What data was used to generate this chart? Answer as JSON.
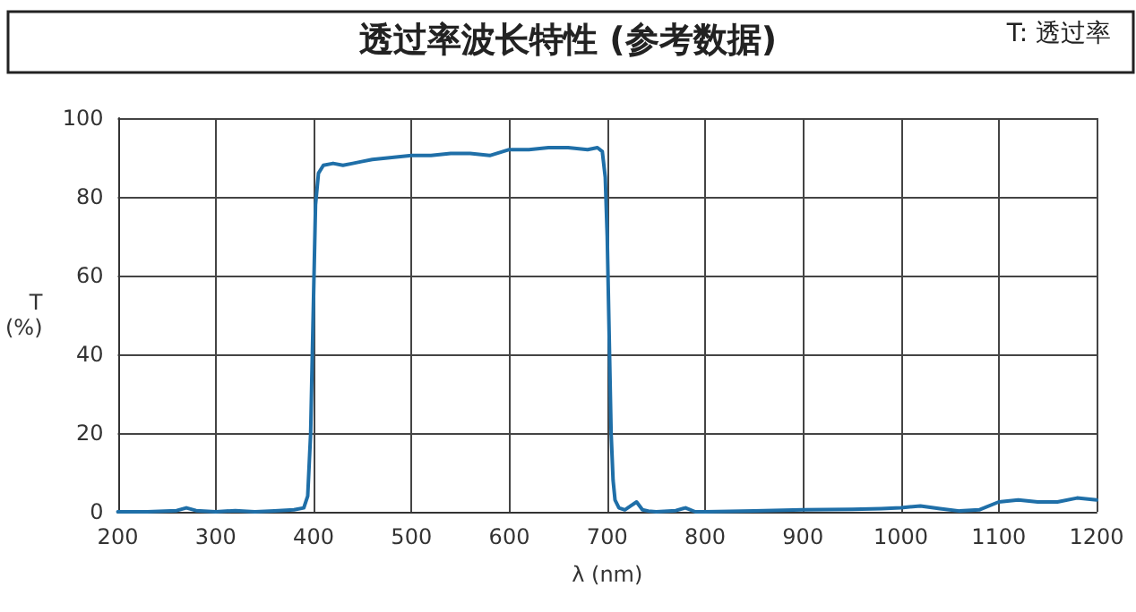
{
  "chart_data": {
    "type": "line",
    "title": "透过率波长特性 (参考数据)",
    "annotations": [
      "T: 透过率"
    ],
    "xlabel": "λ (nm)",
    "ylabel": "T\n(%)",
    "x": [
      200,
      230,
      260,
      270,
      280,
      300,
      320,
      340,
      360,
      380,
      390,
      394,
      397,
      400,
      402,
      405,
      410,
      420,
      430,
      440,
      450,
      460,
      480,
      500,
      520,
      540,
      560,
      580,
      600,
      620,
      640,
      660,
      680,
      690,
      695,
      698,
      700,
      702,
      704,
      706,
      708,
      712,
      718,
      724,
      730,
      736,
      742,
      750,
      770,
      780,
      790,
      800,
      850,
      900,
      950,
      980,
      1000,
      1020,
      1040,
      1060,
      1080,
      1100,
      1120,
      1140,
      1160,
      1180,
      1200
    ],
    "series": [
      {
        "color": "#1f6fa8",
        "values": [
          0,
          0,
          0.3,
          1,
          0.3,
          0,
          0.3,
          0,
          0.2,
          0.5,
          1,
          4,
          20,
          55,
          78,
          86,
          88,
          88.5,
          88,
          88.5,
          89,
          89.5,
          90,
          90.5,
          90.5,
          91,
          91,
          90.5,
          92,
          92,
          92.5,
          92.5,
          92,
          92.5,
          91.5,
          85,
          70,
          45,
          20,
          8,
          3,
          1,
          0.5,
          1.5,
          2.5,
          0.5,
          0.2,
          0,
          0.3,
          1,
          0,
          0,
          0.2,
          0.5,
          0.6,
          0.8,
          1,
          1.5,
          0.8,
          0.2,
          0.5,
          2.5,
          3,
          2.5,
          2.5,
          3.5,
          3
        ]
      }
    ],
    "xlim": [
      200,
      1200
    ],
    "xticks": [
      200,
      300,
      400,
      500,
      600,
      700,
      800,
      900,
      1000,
      1100,
      1200
    ],
    "ylim": [
      0,
      100
    ],
    "yticks": [
      0,
      20,
      40,
      60,
      80,
      100
    ],
    "grid": true,
    "marker": "none",
    "line_style": "solid"
  }
}
